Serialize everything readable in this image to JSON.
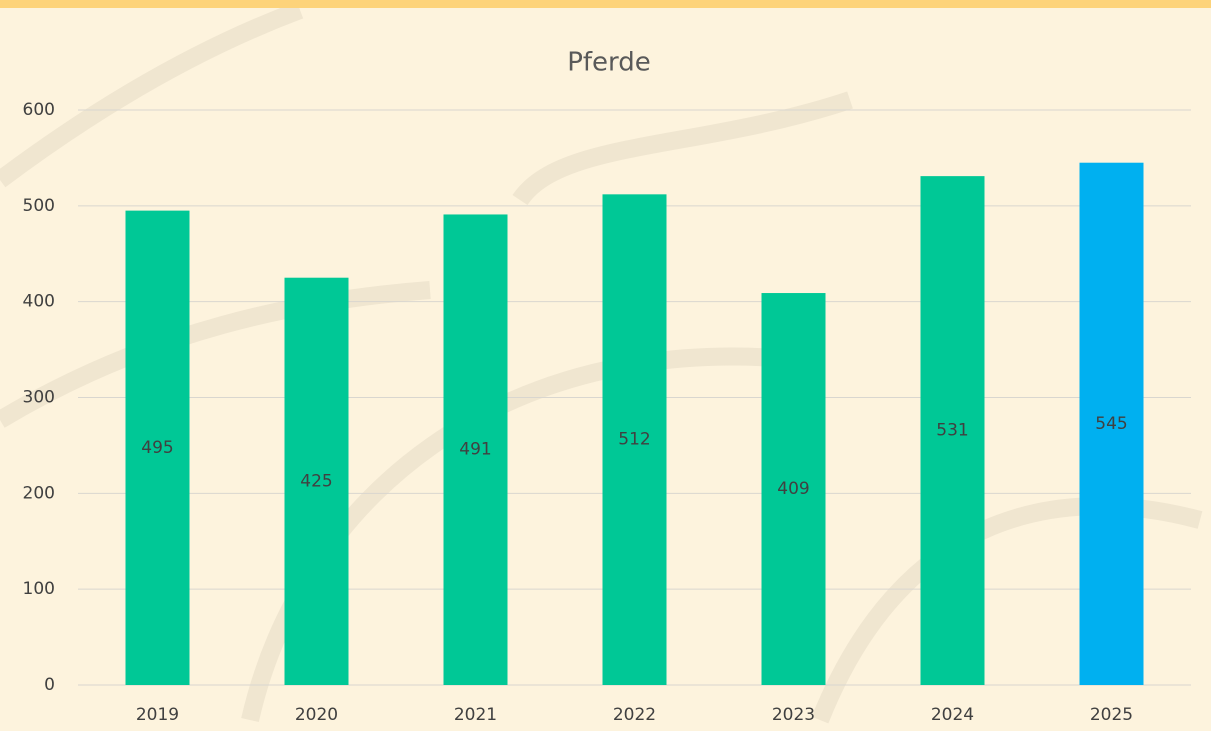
{
  "chart_data": {
    "type": "bar",
    "title": "Pferde",
    "categories": [
      "2019",
      "2020",
      "2021",
      "2022",
      "2023",
      "2024",
      "2025"
    ],
    "values": [
      495,
      425,
      491,
      512,
      409,
      531,
      545
    ],
    "colors": [
      "#00c896",
      "#00c896",
      "#00c896",
      "#00c896",
      "#00c896",
      "#00c896",
      "#00b0f0"
    ],
    "ylim": [
      0,
      600
    ],
    "yticks": [
      0,
      100,
      200,
      300,
      400,
      500,
      600
    ],
    "grid": true
  }
}
